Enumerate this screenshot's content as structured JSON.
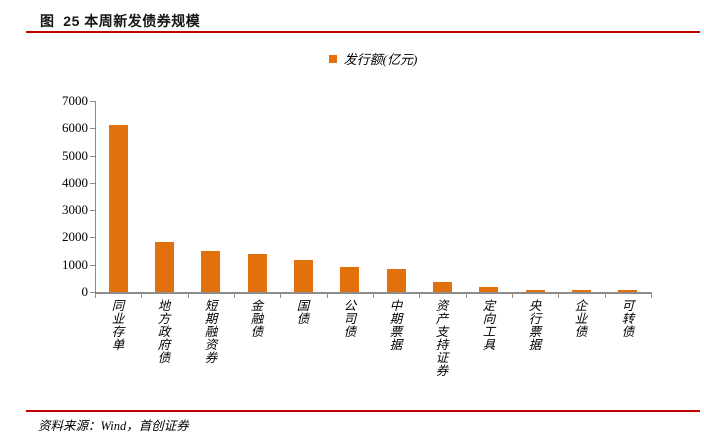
{
  "figure": {
    "title": "图  25 本周新发债券规模",
    "source": "资料来源：Wind，首创证券",
    "rule_color": "#C00000"
  },
  "chart_data": {
    "type": "bar",
    "title": "",
    "xlabel": "",
    "ylabel": "",
    "legend": "发行额(亿元)",
    "legend_position": "top-center",
    "grid": false,
    "categories": [
      "同业存单",
      "地方政府债",
      "短期融资券",
      "金融债",
      "国债",
      "公司债",
      "中期票据",
      "资产支持证券",
      "定向工具",
      "央行票据",
      "企业债",
      "可转债"
    ],
    "values": [
      6130,
      1850,
      1490,
      1410,
      1170,
      900,
      840,
      370,
      200,
      80,
      70,
      65
    ],
    "ylim": [
      0,
      7000
    ],
    "ytick_labels": [
      "0",
      "1000",
      "2000",
      "3000",
      "4000",
      "5000",
      "6000",
      "7000"
    ],
    "bar_color": "#E2700D",
    "axis_color": "#8C8C8C"
  }
}
